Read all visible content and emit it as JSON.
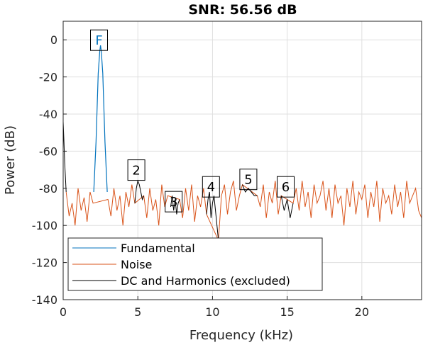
{
  "chart_data": {
    "type": "line",
    "title": "SNR:  56.56 dB",
    "xlabel": "Frequency (kHz)",
    "ylabel": "Power (dB)",
    "xlim": [
      0,
      24
    ],
    "ylim": [
      -140,
      10
    ],
    "xticks": [
      0,
      5,
      10,
      15,
      20
    ],
    "yticks": [
      0,
      -20,
      -40,
      -60,
      -80,
      -100,
      -120,
      -140
    ],
    "grid": true,
    "legend_position": "bottom-left",
    "colors": {
      "fundamental": "#0072BD",
      "noise": "#D95319",
      "harmonics": "#000000",
      "grid": "#DFDFDF",
      "fundamental_label": "#0072BD"
    },
    "series": [
      {
        "name": "Fundamental",
        "color": "#0072BD",
        "x": [
          2.05,
          2.2,
          2.35,
          2.45,
          2.5,
          2.55,
          2.65,
          2.8,
          2.95
        ],
        "y": [
          -82,
          -55,
          -18,
          -6,
          -3,
          -6,
          -18,
          -55,
          -82
        ]
      },
      {
        "name": "Noise",
        "color": "#D95319",
        "x": [
          0.2,
          0.4,
          0.6,
          0.8,
          1.0,
          1.2,
          1.4,
          1.6,
          1.8,
          2.0,
          3.0,
          3.2,
          3.4,
          3.6,
          3.8,
          4.0,
          4.2,
          4.4,
          4.6,
          4.8,
          5.4,
          5.6,
          5.8,
          6.0,
          6.2,
          6.4,
          6.6,
          6.8,
          7.0,
          7.8,
          8.0,
          8.2,
          8.4,
          8.6,
          8.8,
          9.0,
          9.2,
          9.4,
          9.6,
          10.4,
          10.6,
          10.8,
          11.0,
          11.2,
          11.4,
          11.6,
          11.8,
          12.0,
          13.0,
          13.2,
          13.4,
          13.6,
          13.8,
          14.0,
          14.2,
          14.4,
          14.6,
          15.4,
          15.6,
          15.8,
          16.0,
          16.2,
          16.4,
          16.6,
          16.8,
          17.0,
          17.2,
          17.4,
          17.6,
          17.8,
          18.0,
          18.2,
          18.4,
          18.6,
          18.8,
          19.0,
          19.2,
          19.4,
          19.6,
          19.8,
          20.0,
          20.2,
          20.4,
          20.6,
          20.8,
          21.0,
          21.2,
          21.4,
          21.6,
          21.8,
          22.0,
          22.2,
          22.4,
          22.6,
          22.8,
          23.0,
          23.2,
          23.4,
          23.6,
          23.8,
          24.0
        ],
        "y": [
          -82,
          -95,
          -88,
          -100,
          -80,
          -92,
          -85,
          -98,
          -82,
          -88,
          -86,
          -95,
          -80,
          -92,
          -84,
          -100,
          -82,
          -90,
          -78,
          -88,
          -84,
          -96,
          -80,
          -92,
          -86,
          -100,
          -78,
          -90,
          -84,
          -86,
          -96,
          -80,
          -92,
          -78,
          -98,
          -84,
          -90,
          -80,
          -94,
          -108,
          -84,
          -78,
          -94,
          -82,
          -76,
          -92,
          -84,
          -78,
          -84,
          -90,
          -78,
          -96,
          -82,
          -88,
          -76,
          -94,
          -84,
          -88,
          -80,
          -92,
          -76,
          -90,
          -82,
          -96,
          -78,
          -88,
          -84,
          -76,
          -92,
          -80,
          -96,
          -78,
          -88,
          -84,
          -100,
          -80,
          -90,
          -76,
          -94,
          -82,
          -86,
          -78,
          -96,
          -82,
          -90,
          -76,
          -98,
          -80,
          -88,
          -84,
          -94,
          -78,
          -90,
          -82,
          -96,
          -76,
          -88,
          -84,
          -80,
          -92,
          -96
        ]
      },
      {
        "name": "DC and Harmonics (excluded)",
        "color": "#000000",
        "x": [
          0.0,
          0.05,
          0.1,
          0.15,
          0.2
        ],
        "y": [
          -44,
          -55,
          -66,
          -74,
          -82
        ]
      }
    ],
    "harmonic_excluded_segments": [
      {
        "x": [
          4.8,
          4.9,
          5.0,
          5.1,
          5.2,
          5.3,
          5.4
        ],
        "y": [
          -88,
          -80,
          -76,
          -78,
          -82,
          -86,
          -84
        ]
      },
      {
        "x": [
          7.2,
          7.3,
          7.4,
          7.5,
          7.6,
          7.7,
          7.8
        ],
        "y": [
          -90,
          -84,
          -92,
          -86,
          -94,
          -88,
          -86
        ]
      },
      {
        "x": [
          9.6,
          9.7,
          9.8,
          9.9,
          10.0,
          10.1,
          10.2,
          10.3,
          10.4
        ],
        "y": [
          -94,
          -86,
          -82,
          -96,
          -88,
          -84,
          -92,
          -100,
          -108
        ]
      },
      {
        "x": [
          12.0,
          12.2,
          12.4,
          12.6,
          12.8,
          13.0
        ],
        "y": [
          -78,
          -82,
          -80,
          -82,
          -84,
          -84
        ]
      },
      {
        "x": [
          14.6,
          14.8,
          15.0,
          15.2,
          15.4
        ],
        "y": [
          -84,
          -92,
          -86,
          -96,
          -88
        ]
      }
    ],
    "markers": [
      {
        "label": "F",
        "x": 2.4,
        "y": 0,
        "color": "#0072BD"
      },
      {
        "label": "2",
        "x": 4.9,
        "y": -70,
        "color": "#000000"
      },
      {
        "label": "3",
        "x": 7.4,
        "y": -87,
        "color": "#000000"
      },
      {
        "label": "4",
        "x": 9.9,
        "y": -79,
        "color": "#000000"
      },
      {
        "label": "5",
        "x": 12.4,
        "y": -75,
        "color": "#000000"
      },
      {
        "label": "6",
        "x": 14.9,
        "y": -79,
        "color": "#000000"
      }
    ],
    "legend": [
      "Fundamental",
      "Noise",
      "DC and Harmonics (excluded)"
    ]
  }
}
